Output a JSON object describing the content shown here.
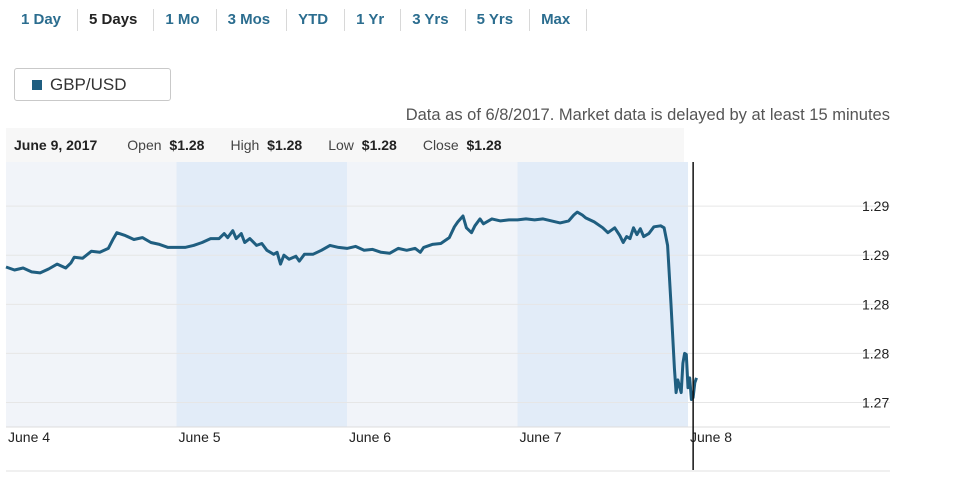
{
  "range_tabs": [
    {
      "label": "1 Day",
      "active": false
    },
    {
      "label": "5 Days",
      "active": true
    },
    {
      "label": "1 Mo",
      "active": false
    },
    {
      "label": "3 Mos",
      "active": false
    },
    {
      "label": "YTD",
      "active": false
    },
    {
      "label": "1 Yr",
      "active": false
    },
    {
      "label": "3 Yrs",
      "active": false
    },
    {
      "label": "5 Yrs",
      "active": false
    },
    {
      "label": "Max",
      "active": false
    }
  ],
  "legend": {
    "label": "GBP/USD",
    "color": "#1f5e80"
  },
  "data_note": "Data as of 6/8/2017. Market data is delayed by at least 15 minutes",
  "summary": {
    "date": "June 9, 2017",
    "open_label": "Open",
    "open_value": "$1.28",
    "high_label": "High",
    "high_value": "$1.28",
    "low_label": "Low",
    "low_value": "$1.28",
    "close_label": "Close",
    "close_value": "$1.28"
  },
  "colors": {
    "line": "#1f5e80",
    "band_light": "#f1f4f9",
    "band_dark": "#e2ecf8",
    "grid": "#e6e6e6",
    "cursor": "#111111"
  },
  "chart_data": {
    "type": "area",
    "x_unit": "days since June 4 (0:00)",
    "x_labels": [
      "June 4",
      "June 5",
      "June 6",
      "June 7",
      "June 8"
    ],
    "y_tick_labels": [
      "1.29",
      "1.29",
      "1.28",
      "1.28",
      "1.27"
    ],
    "y_ticks": [
      1.2925,
      1.2875,
      1.2825,
      1.2775,
      1.2725
    ],
    "ylim": [
      1.27,
      1.297
    ],
    "xlim": [
      0,
      4.95
    ],
    "grid": true,
    "shaded_days": [
      {
        "start": 0,
        "end": 1,
        "shade": "light"
      },
      {
        "start": 1,
        "end": 2,
        "shade": "dark"
      },
      {
        "start": 2,
        "end": 3,
        "shade": "light"
      },
      {
        "start": 3,
        "end": 4,
        "shade": "dark"
      }
    ],
    "cursor_x": 4.03,
    "series": [
      {
        "name": "GBP/USD",
        "points": [
          [
            0.0,
            1.2863
          ],
          [
            0.05,
            1.286
          ],
          [
            0.1,
            1.2862
          ],
          [
            0.15,
            1.2858
          ],
          [
            0.2,
            1.2857
          ],
          [
            0.25,
            1.2861
          ],
          [
            0.3,
            1.2866
          ],
          [
            0.35,
            1.2862
          ],
          [
            0.38,
            1.2867
          ],
          [
            0.4,
            1.2873
          ],
          [
            0.45,
            1.2872
          ],
          [
            0.5,
            1.2879
          ],
          [
            0.55,
            1.2878
          ],
          [
            0.6,
            1.2882
          ],
          [
            0.63,
            1.2892
          ],
          [
            0.65,
            1.2898
          ],
          [
            0.7,
            1.2895
          ],
          [
            0.75,
            1.2891
          ],
          [
            0.8,
            1.2893
          ],
          [
            0.85,
            1.2888
          ],
          [
            0.9,
            1.2886
          ],
          [
            0.95,
            1.2883
          ],
          [
            1.0,
            1.2883
          ],
          [
            1.05,
            1.2883
          ],
          [
            1.1,
            1.2885
          ],
          [
            1.15,
            1.2888
          ],
          [
            1.2,
            1.2892
          ],
          [
            1.25,
            1.2892
          ],
          [
            1.28,
            1.2897
          ],
          [
            1.3,
            1.2893
          ],
          [
            1.33,
            1.29
          ],
          [
            1.35,
            1.2892
          ],
          [
            1.38,
            1.2897
          ],
          [
            1.4,
            1.2888
          ],
          [
            1.43,
            1.2892
          ],
          [
            1.47,
            1.2885
          ],
          [
            1.5,
            1.2887
          ],
          [
            1.53,
            1.288
          ],
          [
            1.57,
            1.2876
          ],
          [
            1.59,
            1.2878
          ],
          [
            1.61,
            1.2866
          ],
          [
            1.63,
            1.2875
          ],
          [
            1.66,
            1.2871
          ],
          [
            1.7,
            1.2874
          ],
          [
            1.72,
            1.2869
          ],
          [
            1.75,
            1.2876
          ],
          [
            1.8,
            1.2876
          ],
          [
            1.85,
            1.288
          ],
          [
            1.9,
            1.2885
          ],
          [
            1.95,
            1.2883
          ],
          [
            2.0,
            1.2882
          ],
          [
            2.05,
            1.2884
          ],
          [
            2.1,
            1.288
          ],
          [
            2.15,
            1.2881
          ],
          [
            2.2,
            1.2878
          ],
          [
            2.25,
            1.2877
          ],
          [
            2.3,
            1.2882
          ],
          [
            2.35,
            1.288
          ],
          [
            2.4,
            1.2882
          ],
          [
            2.43,
            1.2878
          ],
          [
            2.45,
            1.2883
          ],
          [
            2.5,
            1.2886
          ],
          [
            2.55,
            1.2887
          ],
          [
            2.6,
            1.2893
          ],
          [
            2.63,
            1.2904
          ],
          [
            2.65,
            1.2909
          ],
          [
            2.68,
            1.2915
          ],
          [
            2.7,
            1.2903
          ],
          [
            2.73,
            1.2898
          ],
          [
            2.75,
            1.2905
          ],
          [
            2.78,
            1.2912
          ],
          [
            2.8,
            1.2907
          ],
          [
            2.85,
            1.2912
          ],
          [
            2.9,
            1.291
          ],
          [
            2.95,
            1.2911
          ],
          [
            3.0,
            1.2911
          ],
          [
            3.05,
            1.2912
          ],
          [
            3.1,
            1.2911
          ],
          [
            3.15,
            1.2912
          ],
          [
            3.2,
            1.291
          ],
          [
            3.25,
            1.2908
          ],
          [
            3.3,
            1.291
          ],
          [
            3.33,
            1.2916
          ],
          [
            3.35,
            1.2919
          ],
          [
            3.38,
            1.2916
          ],
          [
            3.4,
            1.2913
          ],
          [
            3.45,
            1.2909
          ],
          [
            3.5,
            1.2903
          ],
          [
            3.53,
            1.2898
          ],
          [
            3.57,
            1.2903
          ],
          [
            3.6,
            1.2895
          ],
          [
            3.62,
            1.2888
          ],
          [
            3.64,
            1.2894
          ],
          [
            3.66,
            1.2892
          ],
          [
            3.68,
            1.2903
          ],
          [
            3.7,
            1.2896
          ],
          [
            3.72,
            1.2902
          ],
          [
            3.74,
            1.2894
          ],
          [
            3.77,
            1.2897
          ],
          [
            3.8,
            1.2904
          ],
          [
            3.84,
            1.2905
          ],
          [
            3.86,
            1.2903
          ],
          [
            3.88,
            1.2885
          ],
          [
            3.9,
            1.2825
          ],
          [
            3.92,
            1.276
          ],
          [
            3.93,
            1.2735
          ],
          [
            3.94,
            1.2748
          ],
          [
            3.96,
            1.2735
          ],
          [
            3.97,
            1.2765
          ],
          [
            3.98,
            1.2775
          ],
          [
            3.99,
            1.2774
          ],
          [
            4.0,
            1.274
          ],
          [
            4.01,
            1.275
          ],
          [
            4.02,
            1.2728
          ],
          [
            4.03,
            1.273
          ],
          [
            4.04,
            1.2745
          ],
          [
            4.05,
            1.275
          ]
        ]
      }
    ]
  }
}
